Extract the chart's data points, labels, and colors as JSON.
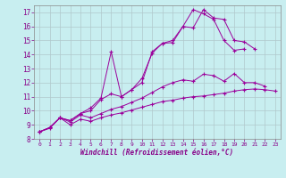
{
  "xlabel": "Windchill (Refroidissement éolien,°C)",
  "background_color": "#c8eef0",
  "line_color": "#9b009b",
  "grid_color": "#b0c8cc",
  "xlim": [
    -0.5,
    23.5
  ],
  "ylim": [
    8,
    17.5
  ],
  "xticks": [
    0,
    1,
    2,
    3,
    4,
    5,
    6,
    7,
    8,
    9,
    10,
    11,
    12,
    13,
    14,
    15,
    16,
    17,
    18,
    19,
    20,
    21,
    22,
    23
  ],
  "yticks": [
    8,
    9,
    10,
    11,
    12,
    13,
    14,
    15,
    16,
    17
  ],
  "lines": [
    {
      "x": [
        0,
        1,
        2,
        3,
        4,
        5,
        6,
        7,
        8,
        9,
        10,
        11,
        12,
        13,
        14,
        15,
        16,
        17,
        18,
        19,
        20,
        21
      ],
      "y": [
        8.5,
        8.8,
        9.5,
        9.3,
        9.8,
        10.2,
        10.9,
        14.2,
        11.0,
        11.5,
        12.0,
        14.2,
        14.8,
        14.85,
        16.0,
        15.9,
        17.2,
        16.6,
        16.5,
        15.0,
        14.9,
        14.4
      ]
    },
    {
      "x": [
        0,
        1,
        2,
        3,
        4,
        5,
        6,
        7,
        8,
        9,
        10,
        11,
        12,
        13,
        14,
        15,
        16,
        17,
        18,
        19,
        20
      ],
      "y": [
        8.5,
        8.8,
        9.5,
        9.3,
        9.8,
        10.0,
        10.8,
        11.2,
        11.0,
        11.5,
        12.3,
        14.1,
        14.8,
        15.0,
        16.0,
        17.2,
        16.9,
        16.5,
        15.0,
        14.3,
        14.4
      ]
    },
    {
      "x": [
        0,
        1,
        2,
        3,
        4,
        5,
        6,
        7,
        8,
        9,
        10,
        11,
        12,
        13,
        14,
        15,
        16,
        17,
        18,
        19,
        20,
        21,
        22
      ],
      "y": [
        8.5,
        8.8,
        9.5,
        9.2,
        9.7,
        9.5,
        9.8,
        10.1,
        10.3,
        10.6,
        10.9,
        11.3,
        11.7,
        12.0,
        12.2,
        12.1,
        12.6,
        12.5,
        12.1,
        12.65,
        12.0,
        12.0,
        11.75
      ]
    },
    {
      "x": [
        0,
        1,
        2,
        3,
        4,
        5,
        6,
        7,
        8,
        9,
        10,
        11,
        12,
        13,
        14,
        15,
        16,
        17,
        18,
        19,
        20,
        21,
        22,
        23
      ],
      "y": [
        8.5,
        8.75,
        9.5,
        9.0,
        9.4,
        9.25,
        9.5,
        9.7,
        9.85,
        10.05,
        10.25,
        10.45,
        10.65,
        10.75,
        10.9,
        11.0,
        11.05,
        11.15,
        11.25,
        11.4,
        11.5,
        11.55,
        11.5,
        11.4
      ]
    }
  ]
}
